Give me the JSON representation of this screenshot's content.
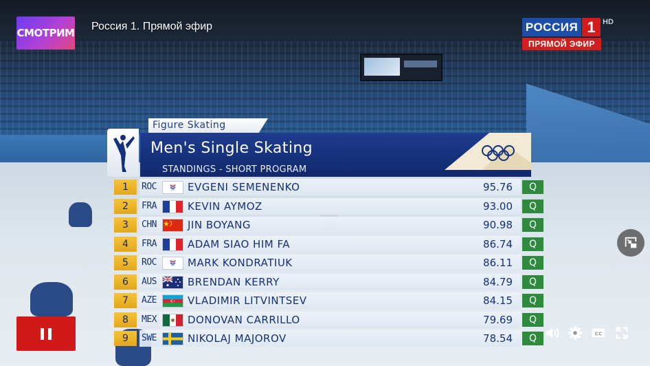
{
  "channel_logo": "СМОТРИМ",
  "stream_title": "Россия 1. Прямой эфир",
  "broadcaster": {
    "name": "РОССИЯ",
    "number": "1",
    "hd": "HD",
    "live": "ПРЯМОЙ ЭФИР"
  },
  "graphic": {
    "category": "Figure Skating",
    "title": "Men's Single Skating",
    "subtitle": "STANDINGS - SHORT PROGRAM"
  },
  "standings": [
    {
      "rank": "1",
      "noc": "ROC",
      "flag": "roc",
      "name": "Evgeni Semenenko",
      "score": "95.76",
      "status": "Q"
    },
    {
      "rank": "2",
      "noc": "FRA",
      "flag": "fra",
      "name": "Kevin Aymoz",
      "score": "93.00",
      "status": "Q"
    },
    {
      "rank": "3",
      "noc": "CHN",
      "flag": "chn",
      "name": "Jin Boyang",
      "score": "90.98",
      "status": "Q"
    },
    {
      "rank": "4",
      "noc": "FRA",
      "flag": "fra",
      "name": "Adam Siao Him Fa",
      "score": "86.74",
      "status": "Q"
    },
    {
      "rank": "5",
      "noc": "ROC",
      "flag": "roc",
      "name": "Mark Kondratiuk",
      "score": "86.11",
      "status": "Q"
    },
    {
      "rank": "6",
      "noc": "AUS",
      "flag": "aus",
      "name": "Brendan Kerry",
      "score": "84.79",
      "status": "Q"
    },
    {
      "rank": "7",
      "noc": "AZE",
      "flag": "aze",
      "name": "Vladimir Litvintsev",
      "score": "84.15",
      "status": "Q"
    },
    {
      "rank": "8",
      "noc": "MEX",
      "flag": "mex",
      "name": "Donovan Carrillo",
      "score": "79.69",
      "status": "Q"
    },
    {
      "rank": "9",
      "noc": "SWE",
      "flag": "swe",
      "name": "Nikolaj Majorov",
      "score": "78.54",
      "status": "Q"
    }
  ],
  "controls": {
    "pause_icon": "pause-icon",
    "volume_icon": "volume-icon",
    "settings_icon": "gear-icon",
    "captions_icon": "closed-captions-icon",
    "fullscreen_icon": "fullscreen-icon",
    "pip_icon": "picture-in-picture-icon"
  },
  "colors": {
    "brand_red": "#d01a1a",
    "rank_gold": "#e2a81d",
    "qualified_green": "#2f8a3f",
    "header_blue": "#15307a"
  }
}
